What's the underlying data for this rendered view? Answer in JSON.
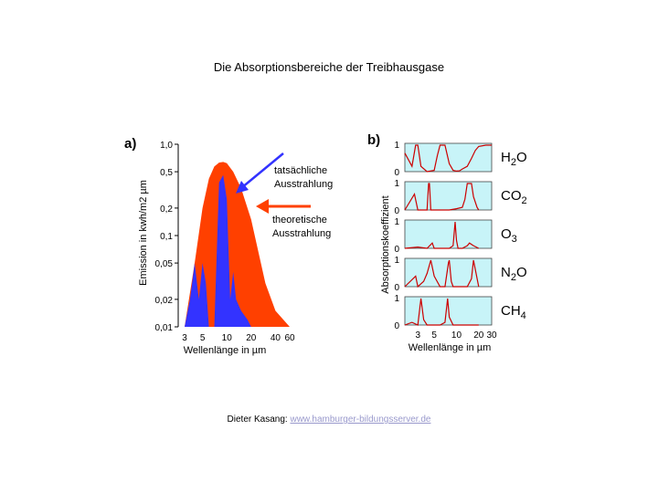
{
  "title": "Die Absorptionsbereiche der Treibhausgase",
  "footer": {
    "author": "Dieter Kasang:",
    "link": "www.hamburger-bildungsserver.de"
  },
  "colors": {
    "red": "#ff4000",
    "blue": "#3333ff",
    "panel_bg": "#c8f4f8",
    "curve": "#cc0000"
  },
  "chart_data": [
    {
      "type": "area",
      "panel_label": "a)",
      "xlabel": "Wellenlänge in µm",
      "ylabel": "Emission in kwh/m2 µm",
      "x_ticks": [
        "3",
        "5",
        "10",
        "20",
        "40",
        "60"
      ],
      "y_ticks": [
        "1,0",
        "0,5",
        "0,2",
        "0,1",
        "0,05",
        "0,02",
        "0,01"
      ],
      "annotations": [
        {
          "text": [
            "tatsächliche",
            "Ausstrahlung"
          ],
          "arrow_color": "#3333ff"
        },
        {
          "text": [
            "theoretische",
            "Ausstrahlung"
          ],
          "arrow_color": "#ff4000"
        }
      ],
      "series": [
        {
          "name": "theoretische Ausstrahlung",
          "x": [
            3,
            4,
            5,
            6,
            7,
            8,
            9,
            10,
            12,
            15,
            20,
            30,
            40,
            60
          ],
          "values": [
            0.01,
            0.05,
            0.2,
            0.42,
            0.57,
            0.63,
            0.64,
            0.62,
            0.5,
            0.33,
            0.15,
            0.03,
            0.015,
            0.01
          ]
        },
        {
          "name": "tatsächliche Ausstrahlung",
          "x": [
            3,
            3.5,
            4,
            4.5,
            5,
            5.5,
            6,
            7,
            8,
            9,
            10,
            11,
            12,
            13,
            15,
            18,
            20
          ],
          "values": [
            0.01,
            0.02,
            0.05,
            0.02,
            0.05,
            0.03,
            0.01,
            0.01,
            0.38,
            0.46,
            0.25,
            0.02,
            0.04,
            0.02,
            0.015,
            0.012,
            0.01
          ]
        }
      ]
    },
    {
      "type": "line",
      "panel_label": "b)",
      "xlabel": "Wellenlänge in µm",
      "ylabel": "Absorptionskoeffizient",
      "x_ticks": [
        "3",
        "5",
        "10",
        "20",
        "30"
      ],
      "y_ticks": [
        "1",
        "0"
      ],
      "series": [
        {
          "name": "H2O",
          "gas": "H",
          "sub": "2",
          "rest": "O",
          "x": [
            2,
            2.5,
            2.8,
            3,
            3.3,
            4,
            5,
            5.5,
            6,
            6.5,
            7,
            8,
            9,
            10,
            11,
            12,
            14,
            16,
            18,
            20,
            25,
            30
          ],
          "values": [
            0.7,
            0.2,
            1,
            1,
            0.2,
            0,
            0.05,
            0.6,
            1,
            1,
            1,
            0.3,
            0.05,
            0.02,
            0.03,
            0.1,
            0.2,
            0.5,
            0.8,
            0.95,
            1,
            1
          ]
        },
        {
          "name": "CO2",
          "gas": "CO",
          "sub": "2",
          "rest": "",
          "x": [
            2,
            2.7,
            3,
            4,
            4.2,
            4.3,
            4.5,
            5,
            8,
            10,
            12,
            13,
            14,
            15,
            16,
            17,
            19,
            20
          ],
          "values": [
            0,
            0.6,
            0,
            0,
            1,
            1,
            0,
            0,
            0,
            0.05,
            0.1,
            0.4,
            1,
            1,
            1,
            0.5,
            0.1,
            0
          ]
        },
        {
          "name": "O3",
          "gas": "O",
          "sub": "3",
          "rest": "",
          "x": [
            2,
            3,
            4,
            4.7,
            5,
            6,
            8,
            9,
            9.6,
            10,
            10.5,
            12,
            14,
            15,
            17,
            20
          ],
          "values": [
            0,
            0.05,
            0,
            0.2,
            0,
            0,
            0,
            0.1,
            1,
            0.3,
            0,
            0,
            0.1,
            0.2,
            0.1,
            0
          ]
        },
        {
          "name": "N2O",
          "gas": "N",
          "sub": "2",
          "rest": "O",
          "x": [
            2,
            2.8,
            3,
            3.6,
            4,
            4.5,
            5,
            6,
            7,
            7.8,
            8,
            8.5,
            9,
            10,
            14,
            16,
            17,
            20
          ],
          "values": [
            0,
            0.4,
            0,
            0.2,
            0.5,
            1,
            0.4,
            0,
            0,
            0.9,
            1,
            0.2,
            0,
            0,
            0,
            0.3,
            1,
            0
          ]
        },
        {
          "name": "CH4",
          "gas": "CH",
          "sub": "4",
          "rest": "",
          "x": [
            2,
            2.5,
            3,
            3.3,
            3.6,
            4,
            5,
            6,
            7,
            7.6,
            8,
            9,
            10,
            12,
            15,
            20
          ],
          "values": [
            0,
            0.1,
            0,
            1,
            0.2,
            0,
            0,
            0,
            0.1,
            1,
            0.3,
            0,
            0,
            0,
            0,
            0
          ]
        }
      ]
    }
  ]
}
